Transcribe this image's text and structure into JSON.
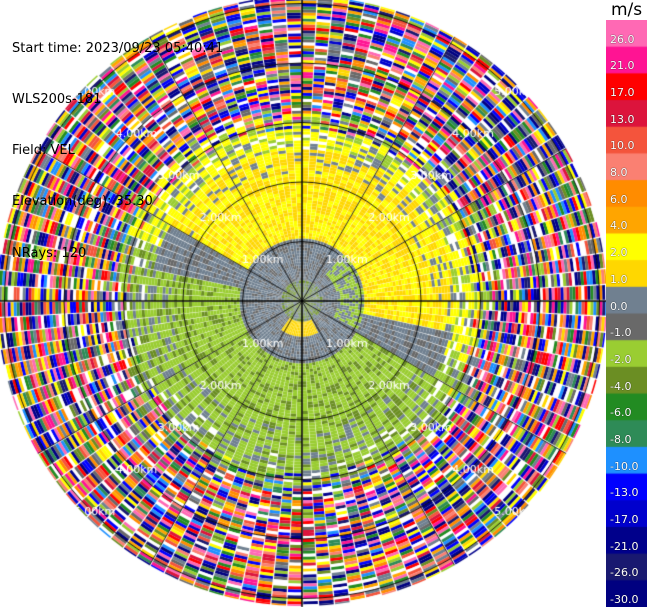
{
  "info": {
    "start_time": "Start time: 2023/09/23 05:40:41",
    "instrument": "WLS200s-181",
    "field": "Field: VEL",
    "elevation": "Elevation(deg): 35.30",
    "nrays": "NRays: 120"
  },
  "colorbar": {
    "unit": "m/s",
    "ticks": [
      "26.0",
      "21.0",
      "17.0",
      "13.0",
      "10.0",
      "8.0",
      "6.0",
      "4.0",
      "2.0",
      "1.0",
      "0.0",
      "-1.0",
      "-2.0",
      "-4.0",
      "-6.0",
      "-8.0",
      "-10.0",
      "-13.0",
      "-17.0",
      "-21.0",
      "-26.0",
      "-30.0"
    ],
    "colors": [
      "#ff69b4",
      "#ff1493",
      "#ff0000",
      "#dc143c",
      "#f4543c",
      "#fa8072",
      "#ff8c00",
      "#ffa500",
      "#ffff00",
      "#ffd700",
      "#708090",
      "#696969",
      "#9acd32",
      "#6b8e23",
      "#228b22",
      "#2e8b57",
      "#1e90ff",
      "#0000ff",
      "#0000cd",
      "#00008b",
      "#191970",
      "#000080"
    ]
  },
  "chart_data": {
    "type": "heatmap",
    "title": "",
    "projection": "polar PPI (plan position indicator)",
    "field": "VEL",
    "units": "m/s",
    "elevation_deg": 35.3,
    "n_rays": 120,
    "range_rings_km": [
      "1.00km",
      "2.00km",
      "3.00km",
      "4.00km",
      "5.00km"
    ],
    "range_ring_values_km": [
      1,
      2,
      3,
      4,
      5
    ],
    "azimuth_lines_deg": [
      0,
      30,
      60,
      90,
      120,
      150,
      180,
      210,
      240,
      270,
      300,
      330
    ],
    "color_scale_m_s": [
      -30,
      -26,
      -21,
      -17,
      -13,
      -10,
      -8,
      -6,
      -4,
      -2,
      -1,
      0,
      1,
      2,
      4,
      6,
      8,
      10,
      13,
      17,
      21,
      26
    ],
    "pattern": {
      "within_0.4km": "mixed green / grey",
      "0.4_to_1.0km": "grey (0 m/s) with small yellow patch south",
      "1.0_to_2.5km_north": "yellow (2 to 4 m/s)",
      "1.0_to_2.5km_south": "green (-1 to -4 m/s)",
      "2.5_to_3.2km": "mixed yellow/green with white gaps",
      "beyond_3.2km": "random noise across full color scale"
    }
  }
}
